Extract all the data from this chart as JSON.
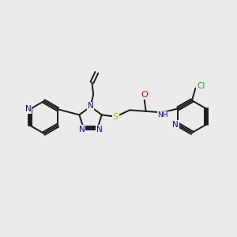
{
  "bg_color": "#ebebeb",
  "atom_colors": {
    "N": "#0000ff",
    "O": "#ff0000",
    "S": "#b8b800",
    "Cl": "#00bb00"
  },
  "bond_color": "#1a1a1a",
  "font_size": 7.0,
  "line_width": 1.4,
  "fig_width": 3.0,
  "fig_height": 3.0,
  "dpi": 100,
  "xlim": [
    0,
    10
  ],
  "ylim": [
    1,
    9
  ]
}
